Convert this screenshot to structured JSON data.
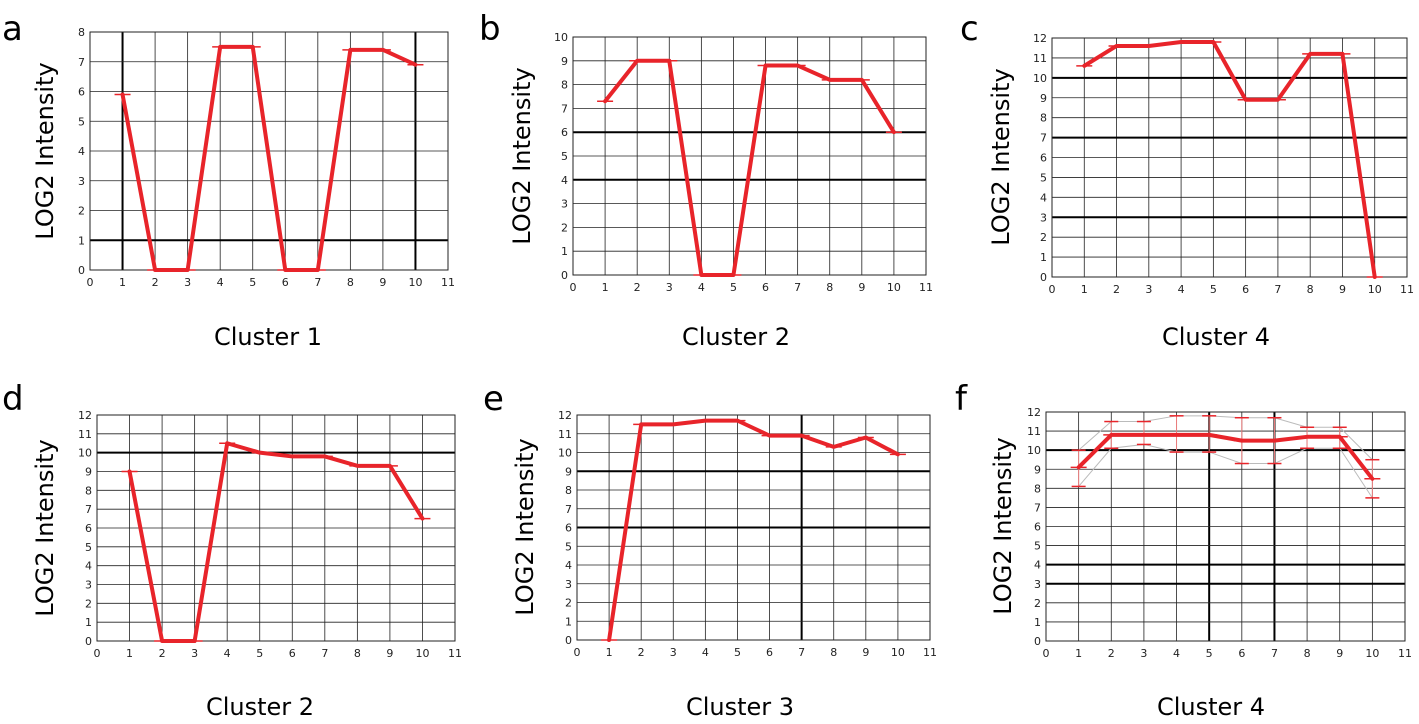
{
  "chart_data": [
    {
      "type": "line",
      "panel": "a",
      "title": "Cluster 1",
      "ylabel": "LOG2 Intensity",
      "xlim": [
        0,
        11
      ],
      "ylim": [
        0,
        8
      ],
      "xticks": [
        0,
        1,
        2,
        3,
        4,
        5,
        6,
        7,
        8,
        9,
        10,
        11
      ],
      "yticks": [
        0,
        1,
        2,
        3,
        4,
        5,
        6,
        7,
        8
      ],
      "bold_x": [
        1,
        10
      ],
      "bold_y": [
        1
      ],
      "grid": true,
      "series": [
        {
          "x": [
            1,
            2,
            3,
            4,
            5,
            6,
            7,
            8,
            9,
            10
          ],
          "y": [
            5.9,
            0,
            0,
            7.5,
            7.5,
            0,
            0,
            7.4,
            7.4,
            6.9
          ],
          "color": "#e8242a"
        }
      ]
    },
    {
      "type": "line",
      "panel": "b",
      "title": "Cluster 2",
      "ylabel": "LOG2 Intensity",
      "xlim": [
        0,
        11
      ],
      "ylim": [
        0,
        10
      ],
      "xticks": [
        0,
        1,
        2,
        3,
        4,
        5,
        6,
        7,
        8,
        9,
        10,
        11
      ],
      "yticks": [
        0,
        1,
        2,
        3,
        4,
        5,
        6,
        7,
        8,
        9,
        10
      ],
      "bold_x": [],
      "bold_y": [
        4,
        6
      ],
      "grid": true,
      "series": [
        {
          "x": [
            1,
            2,
            3,
            4,
            5,
            6,
            7,
            8,
            9,
            10
          ],
          "y": [
            7.3,
            9,
            9,
            0,
            0,
            8.8,
            8.8,
            8.2,
            8.2,
            6
          ],
          "color": "#e8242a"
        }
      ]
    },
    {
      "type": "line",
      "panel": "c",
      "title": "Cluster 4",
      "ylabel": "LOG2 Intensity",
      "xlim": [
        0,
        11
      ],
      "ylim": [
        0,
        12
      ],
      "xticks": [
        0,
        1,
        2,
        3,
        4,
        5,
        6,
        7,
        8,
        9,
        10,
        11
      ],
      "yticks": [
        0,
        1,
        2,
        3,
        4,
        5,
        6,
        7,
        8,
        9,
        10,
        11,
        12
      ],
      "bold_x": [],
      "bold_y": [
        3,
        7,
        10
      ],
      "grid": true,
      "series": [
        {
          "x": [
            1,
            2,
            3,
            4,
            5,
            6,
            7,
            8,
            9,
            10
          ],
          "y": [
            10.6,
            11.6,
            11.6,
            11.8,
            11.8,
            8.9,
            8.9,
            11.2,
            11.2,
            0
          ],
          "color": "#e8242a"
        }
      ]
    },
    {
      "type": "line",
      "panel": "d",
      "title": "Cluster 2",
      "ylabel": "LOG2 Intensity",
      "xlim": [
        0,
        11
      ],
      "ylim": [
        0,
        12
      ],
      "xticks": [
        0,
        1,
        2,
        3,
        4,
        5,
        6,
        7,
        8,
        9,
        10,
        11
      ],
      "yticks": [
        0,
        1,
        2,
        3,
        4,
        5,
        6,
        7,
        8,
        9,
        10,
        11,
        12
      ],
      "bold_x": [],
      "bold_y": [
        10
      ],
      "grid": true,
      "series": [
        {
          "x": [
            1,
            2,
            3,
            4,
            5,
            6,
            7,
            8,
            9,
            10
          ],
          "y": [
            9,
            0,
            0,
            10.5,
            10,
            9.8,
            9.8,
            9.3,
            9.3,
            6.5
          ],
          "color": "#e8242a"
        }
      ]
    },
    {
      "type": "line",
      "panel": "e",
      "title": "Cluster 3",
      "ylabel": "LOG2 Intensity",
      "xlim": [
        0,
        11
      ],
      "ylim": [
        0,
        12
      ],
      "xticks": [
        0,
        1,
        2,
        3,
        4,
        5,
        6,
        7,
        8,
        9,
        10,
        11
      ],
      "yticks": [
        0,
        1,
        2,
        3,
        4,
        5,
        6,
        7,
        8,
        9,
        10,
        11,
        12
      ],
      "bold_x": [
        7
      ],
      "bold_y": [
        6,
        9
      ],
      "grid": true,
      "series": [
        {
          "x": [
            1,
            2,
            3,
            4,
            5,
            6,
            7,
            8,
            9,
            10
          ],
          "y": [
            0,
            11.5,
            11.5,
            11.7,
            11.7,
            10.9,
            10.9,
            10.3,
            10.8,
            9.9
          ],
          "color": "#e8242a"
        }
      ]
    },
    {
      "type": "line",
      "panel": "f",
      "title": "Cluster 4",
      "ylabel": "LOG2 Intensity",
      "xlim": [
        0,
        11
      ],
      "ylim": [
        0,
        12
      ],
      "xticks": [
        0,
        1,
        2,
        3,
        4,
        5,
        6,
        7,
        8,
        9,
        10,
        11
      ],
      "yticks": [
        0,
        1,
        2,
        3,
        4,
        5,
        6,
        7,
        8,
        9,
        10,
        11,
        12
      ],
      "bold_x": [
        5,
        7
      ],
      "bold_y": [
        3,
        4,
        10
      ],
      "grid": true,
      "series": [
        {
          "x": [
            1,
            2,
            3,
            4,
            5,
            6,
            7,
            8,
            9,
            10
          ],
          "y": [
            9.1,
            10.8,
            10.8,
            10.8,
            10.8,
            10.5,
            10.5,
            10.7,
            10.7,
            8.5
          ],
          "color": "#e8242a",
          "upper": [
            10,
            11.5,
            11.5,
            11.8,
            11.8,
            11.7,
            11.7,
            11.2,
            11.2,
            9.5
          ],
          "lower": [
            8.1,
            10.1,
            10.3,
            9.9,
            9.9,
            9.3,
            9.3,
            10.1,
            10.1,
            7.5
          ]
        }
      ]
    }
  ]
}
